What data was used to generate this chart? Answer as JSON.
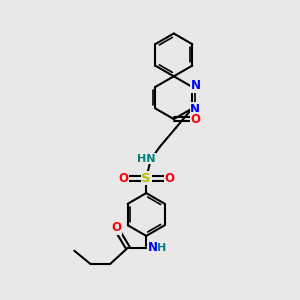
{
  "bg_color": "#e8e8e8",
  "bond_color": "#000000",
  "lw_single": 1.5,
  "lw_double": 1.2,
  "atom_colors": {
    "N": "#0000ee",
    "O": "#ff0000",
    "S": "#bbbb00",
    "NH": "#008080",
    "C": "#000000"
  },
  "fs": 8.5
}
